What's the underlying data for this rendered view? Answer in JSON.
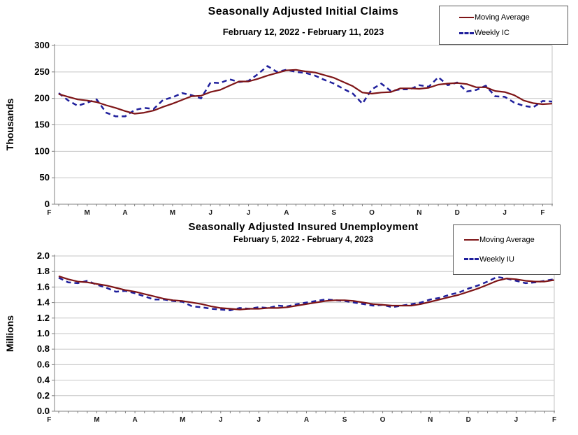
{
  "style": {
    "background": "#ffffff",
    "grid_color": "#c6c6c6",
    "axis_color": "#808080",
    "tick_text_color": "#000000",
    "month_text_color": "#1a1a1a",
    "legend_border_color": "#595959"
  },
  "chart_data": [
    {
      "type": "line",
      "title": "Seasonally Adjusted Initial Claims",
      "subtitle": "February 12, 2022 - February 11, 2023",
      "xlabel": "",
      "ylabel": "Thousands",
      "ylim": [
        0,
        300
      ],
      "y_ticks": [
        0,
        50,
        100,
        150,
        200,
        250,
        300
      ],
      "y_tick_labels": [
        "0",
        "50",
        "100",
        "150",
        "200",
        "250",
        "300"
      ],
      "x_tick_labels": [
        "F",
        "M",
        "A",
        "M",
        "J",
        "J",
        "A",
        "S",
        "O",
        "N",
        "D",
        "J",
        "F"
      ],
      "x_tick_weeks": [
        -1,
        3,
        7,
        12,
        16,
        20,
        24,
        29,
        33,
        38,
        42,
        47,
        51
      ],
      "weeks": 53,
      "grid": true,
      "legend_position": "top-right",
      "series": [
        {
          "name": "Moving Average",
          "style": "solid",
          "color": "#7e1517",
          "values": [
            208,
            203,
            198,
            196,
            193,
            187,
            182,
            176,
            171,
            173,
            177,
            184,
            190,
            197,
            204,
            205,
            212,
            216,
            224,
            232,
            232,
            237,
            243,
            248,
            253,
            254,
            251,
            249,
            244,
            239,
            231,
            223,
            211,
            209,
            211,
            212,
            219,
            219,
            218,
            220,
            226,
            228,
            229,
            227,
            221,
            221,
            214,
            212,
            206,
            196,
            191,
            189,
            190
          ]
        },
        {
          "name": "Weekly IC",
          "style": "dashed",
          "color": "#1f1f9c",
          "values": [
            210,
            196,
            186,
            192,
            198,
            173,
            166,
            166,
            178,
            182,
            180,
            197,
            202,
            210,
            206,
            200,
            230,
            229,
            236,
            231,
            233,
            246,
            261,
            250,
            254,
            250,
            248,
            243,
            235,
            228,
            218,
            209,
            190,
            217,
            228,
            214,
            217,
            217,
            225,
            222,
            240,
            225,
            230,
            213,
            216,
            224,
            204,
            203,
            192,
            186,
            183,
            195,
            194
          ]
        }
      ]
    },
    {
      "type": "line",
      "title": "Seasonally Adjusted Insured Unemployment",
      "subtitle": "February 5, 2022 - February 4, 2023",
      "xlabel": "",
      "ylabel": "Millions",
      "ylim": [
        0,
        2.0
      ],
      "y_ticks": [
        0,
        0.2,
        0.4,
        0.6,
        0.8,
        1.0,
        1.2,
        1.4,
        1.6,
        1.8,
        2.0
      ],
      "y_tick_labels": [
        "0.0",
        "0.2",
        "0.4",
        "0.6",
        "0.8",
        "1.0",
        "1.2",
        "1.4",
        "1.6",
        "1.8",
        "2.0"
      ],
      "x_tick_labels": [
        "F",
        "M",
        "A",
        "M",
        "J",
        "J",
        "A",
        "S",
        "O",
        "N",
        "D",
        "J",
        "F"
      ],
      "x_tick_weeks": [
        -1,
        4,
        8,
        13,
        17,
        21,
        26,
        30,
        34,
        39,
        43,
        48,
        52
      ],
      "weeks": 53,
      "grid": true,
      "legend_position": "top-right",
      "series": [
        {
          "name": "Moving Average",
          "style": "solid",
          "color": "#7e1517",
          "values": [
            1.74,
            1.7,
            1.67,
            1.66,
            1.64,
            1.62,
            1.59,
            1.56,
            1.54,
            1.51,
            1.48,
            1.45,
            1.43,
            1.42,
            1.4,
            1.38,
            1.35,
            1.33,
            1.32,
            1.31,
            1.32,
            1.32,
            1.33,
            1.33,
            1.34,
            1.36,
            1.38,
            1.4,
            1.42,
            1.43,
            1.43,
            1.42,
            1.4,
            1.38,
            1.37,
            1.36,
            1.36,
            1.36,
            1.38,
            1.41,
            1.44,
            1.47,
            1.5,
            1.54,
            1.58,
            1.63,
            1.68,
            1.71,
            1.7,
            1.68,
            1.67,
            1.67,
            1.69
          ]
        },
        {
          "name": "Weekly IU",
          "style": "dashed",
          "color": "#1f1f9c",
          "values": [
            1.72,
            1.66,
            1.65,
            1.68,
            1.63,
            1.59,
            1.54,
            1.55,
            1.52,
            1.48,
            1.44,
            1.44,
            1.42,
            1.41,
            1.35,
            1.34,
            1.32,
            1.31,
            1.3,
            1.33,
            1.32,
            1.34,
            1.33,
            1.36,
            1.35,
            1.38,
            1.4,
            1.42,
            1.44,
            1.43,
            1.42,
            1.4,
            1.38,
            1.36,
            1.37,
            1.34,
            1.36,
            1.38,
            1.4,
            1.44,
            1.46,
            1.5,
            1.53,
            1.58,
            1.62,
            1.67,
            1.73,
            1.71,
            1.68,
            1.65,
            1.66,
            1.68,
            1.7
          ]
        }
      ]
    }
  ]
}
